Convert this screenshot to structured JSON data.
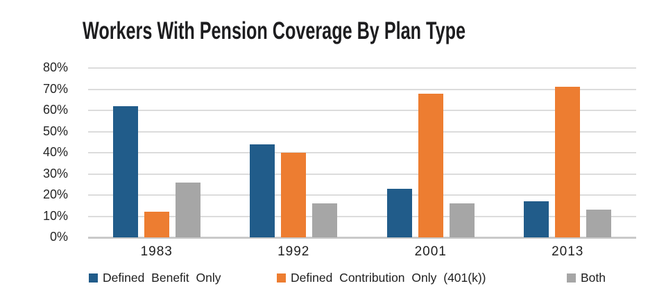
{
  "chart_data": {
    "type": "bar",
    "title": "Workers With Pension Coverage By Plan Type",
    "categories": [
      "1983",
      "1992",
      "2001",
      "2013"
    ],
    "series": [
      {
        "name": "Defined Benefit Only",
        "color": "#215c8a",
        "values": [
          62,
          44,
          23,
          17
        ]
      },
      {
        "name": "Defined Contribution Only (401(k))",
        "color": "#ed7d31",
        "values": [
          12,
          40,
          68,
          71
        ]
      },
      {
        "name": "Both",
        "color": "#a6a6a6",
        "values": [
          26,
          16,
          16,
          13
        ]
      }
    ],
    "xlabel": "",
    "ylabel": "",
    "ylim": [
      0,
      80
    ],
    "ytick_step": 10,
    "yticks": [
      "0%",
      "10%",
      "20%",
      "30%",
      "40%",
      "50%",
      "60%",
      "70%",
      "80%"
    ],
    "grid": true,
    "legend_position": "bottom"
  },
  "colors": {
    "background": "#ffffff",
    "gridline": "#dcdcdc",
    "axis_line": "#c9c9c9",
    "text": "#1f1f1f"
  }
}
